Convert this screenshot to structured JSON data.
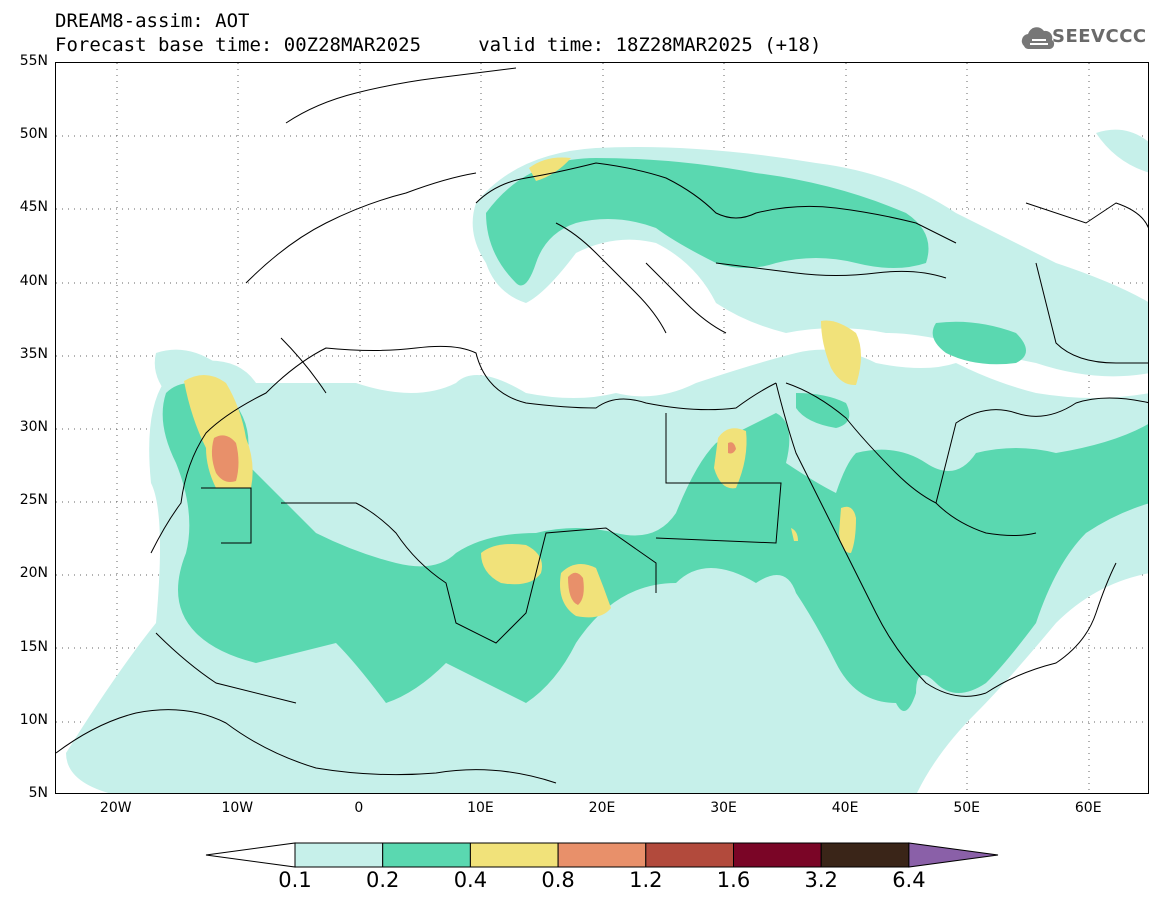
{
  "header": {
    "title_line1": "DREAM8-assim: AOT",
    "title_line2": "Forecast base time: 00Z28MAR2025     valid time: 18Z28MAR2025 (+18)",
    "logo_text": "SEEVCCC"
  },
  "axes": {
    "lon_labels": [
      "20W",
      "10W",
      "0",
      "10E",
      "20E",
      "30E",
      "40E",
      "50E",
      "60E"
    ],
    "lat_labels": [
      "55N",
      "50N",
      "45N",
      "40N",
      "35N",
      "30N",
      "25N",
      "20N",
      "15N",
      "10N",
      "5N"
    ],
    "lon_range": [
      -25,
      65
    ],
    "lat_range": [
      5,
      55
    ]
  },
  "colorbar": {
    "labels": [
      "0.1",
      "0.2",
      "0.4",
      "0.8",
      "1.2",
      "1.6",
      "3.2",
      "6.4"
    ],
    "colors": [
      "#ffffff",
      "#c6f0ea",
      "#5ad8b0",
      "#f1e27a",
      "#e8906a",
      "#b24a3c",
      "#7a0526",
      "#3a2518",
      "#8a60a8"
    ]
  }
}
